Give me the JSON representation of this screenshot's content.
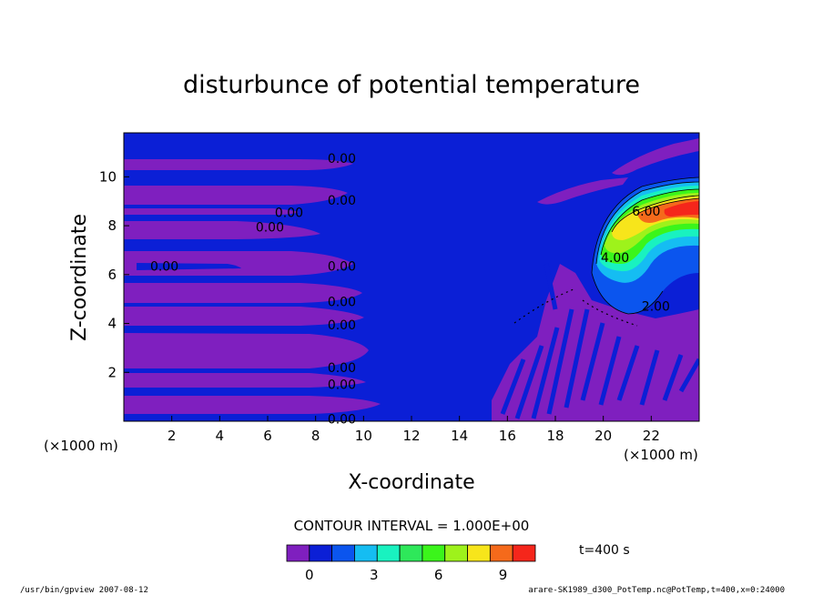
{
  "chart_data": {
    "type": "heatmap",
    "title": "disturbunce of potential temperature",
    "xlabel": "X-coordinate",
    "ylabel": "Z-coordinate",
    "x_unit": "(×1000 m)",
    "y_unit": "(×1000 m)",
    "xlim": [
      0,
      24
    ],
    "ylim": [
      0,
      11.8
    ],
    "x_ticks": [
      "2",
      "4",
      "6",
      "8",
      "10",
      "12",
      "14",
      "16",
      "18",
      "20",
      "22"
    ],
    "y_ticks": [
      "2",
      "4",
      "6",
      "8",
      "10"
    ],
    "contour_interval_text": "CONTOUR INTERVAL = 1.000E+00",
    "time_text": "t=400 s",
    "contour_labels": [
      {
        "text": "0.00",
        "x": 8.5,
        "y": 10.75
      },
      {
        "text": "0.00",
        "x": 8.5,
        "y": 9.05
      },
      {
        "text": "0.00",
        "x": 6.3,
        "y": 8.55
      },
      {
        "text": "0.00",
        "x": 5.5,
        "y": 7.95
      },
      {
        "text": "0.00",
        "x": 1.1,
        "y": 6.35
      },
      {
        "text": "0.00",
        "x": 8.5,
        "y": 6.35
      },
      {
        "text": "0.00",
        "x": 8.5,
        "y": 4.9
      },
      {
        "text": "0.00",
        "x": 8.5,
        "y": 3.95
      },
      {
        "text": "0.00",
        "x": 8.5,
        "y": 2.2
      },
      {
        "text": "0.00",
        "x": 8.5,
        "y": 1.5
      },
      {
        "text": "0.00",
        "x": 8.5,
        "y": 0.1
      },
      {
        "text": "6.00",
        "x": 21.2,
        "y": 8.6
      },
      {
        "text": "4.00",
        "x": 19.9,
        "y": 6.7
      },
      {
        "text": "2.00",
        "x": 21.6,
        "y": 4.7
      }
    ],
    "colorbar": {
      "colors": [
        "#7f1fbf",
        "#0b1fd6",
        "#0b55ee",
        "#15bdf2",
        "#19f2c0",
        "#2ee85a",
        "#3bf51b",
        "#9ef21b",
        "#f7e51b",
        "#f56a1b",
        "#f5261b"
      ],
      "tick_labels": [
        "0",
        "3",
        "6",
        "9"
      ]
    },
    "field_colors": {
      "background": "#0b1fd6",
      "negative": "#7f1fbf"
    }
  },
  "footer": {
    "left": "/usr/bin/gpview   2007-08-12",
    "right": "arare-SK1989_d300_PotTemp.nc@PotTemp,t=400,x=0:24000"
  }
}
